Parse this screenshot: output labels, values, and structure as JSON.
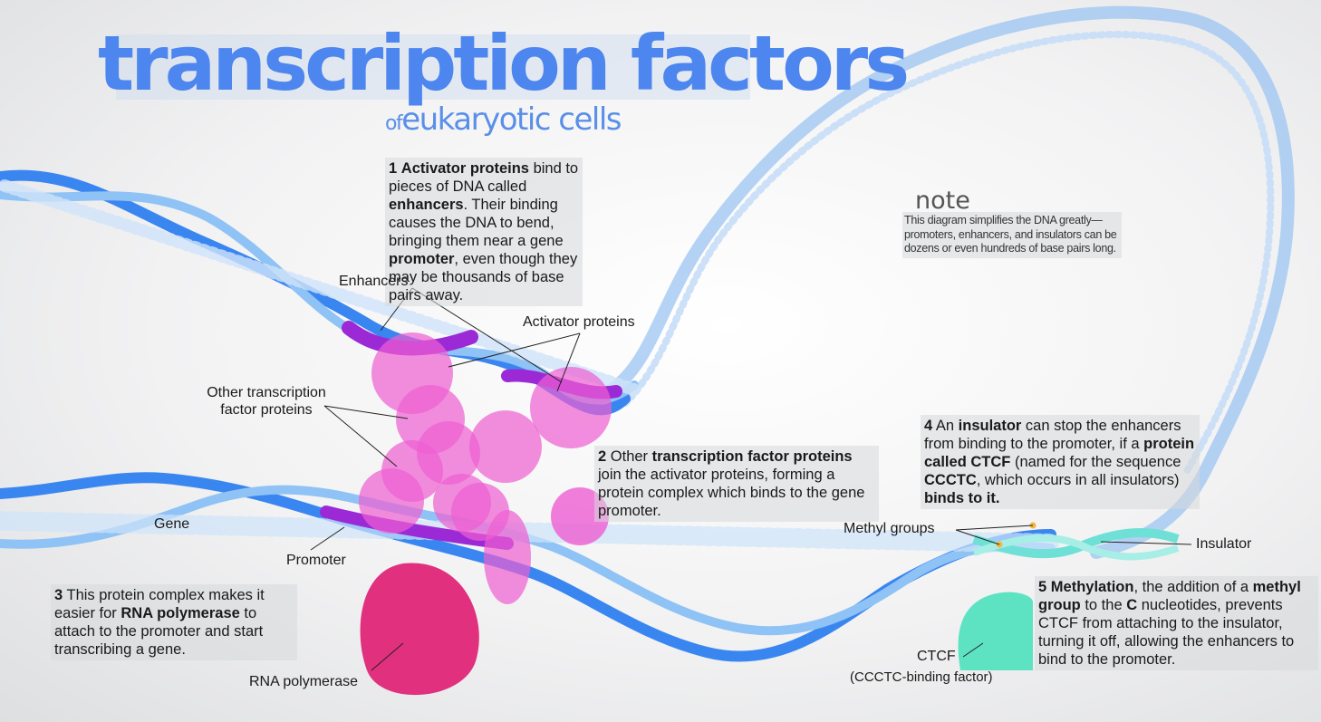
{
  "title": "transcription factors",
  "subtitle_of": "of",
  "subtitle": "eukaryotic cells",
  "step1": {
    "num": "1",
    "b1": "Activator proteins",
    "t1": " bind to pieces of DNA called ",
    "b2": "enhancers",
    "t2": ". Their binding causes the DNA to bend, bringing them near a gene ",
    "b3": "promoter",
    "t3": ", even though they may be thousands of base pairs away."
  },
  "step2": {
    "num": "2",
    "t0": "Other ",
    "b1": "transcription factor proteins",
    "t1": " join the activator proteins, forming a protein complex which binds to the gene promoter."
  },
  "step3": {
    "num": "3",
    "t0": "This protein complex makes it easier for ",
    "b1": "RNA polymerase",
    "t1": " to attach to the promoter and start transcribing a gene."
  },
  "step4": {
    "num": "4",
    "t0": "An ",
    "b1": "insulator",
    "t1": " can stop the enhancers from binding to the promoter, if a ",
    "b2": "protein called CTCF",
    "t2": " (named for the sequence ",
    "b3": "CCCTC",
    "t3": ", which occurs in all insulators) ",
    "b4": "binds to it."
  },
  "step5": {
    "num": "5",
    "b1": "Methylation",
    "t1": ", the addition of a ",
    "b2": "methyl group",
    "t2": " to the ",
    "b3": "C",
    "t3": " nucleotides, prevents CTCF from attaching to the insulator, turning it off, allowing the enhancers to bind to the promoter."
  },
  "note": {
    "heading": "note",
    "text": "This diagram simplifies the DNA greatly—promoters, enhancers, and insulators can be dozens or even hundreds of base pairs long."
  },
  "labels": {
    "enhancers": "Enhancers",
    "activator": "Activator proteins",
    "other_tf": "Other transcription factor proteins",
    "gene": "Gene",
    "promoter": "Promoter",
    "rna_pol": "RNA polymerase",
    "methyl": "Methyl groups",
    "insulator": "Insulator",
    "ctcf": "CTCF",
    "ctcf_full": "(CCCTC-binding factor)"
  },
  "colors": {
    "dna_blue": "#3a86f0",
    "dna_light": "#8fc3f5",
    "purple": "#9b2ad6",
    "protein_pink": "#ee5ed2",
    "polymerase": "#e0307e",
    "ctcf": "#5ee3c2",
    "insulator": "#6fe0d6",
    "title": "#4d86ee"
  }
}
